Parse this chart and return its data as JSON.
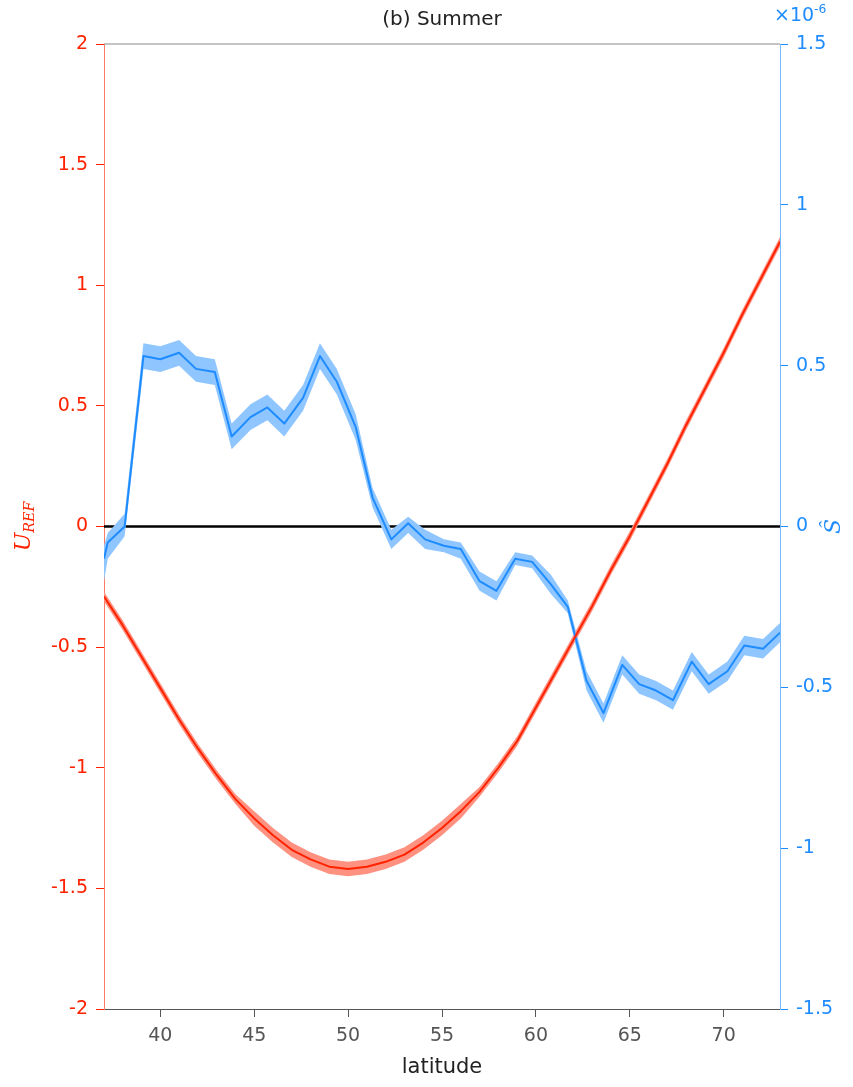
{
  "chart_data": {
    "type": "line",
    "title": "(b) Summer",
    "xlabel": "latitude",
    "ylabel": "U$_{REF}$",
    "y2label": "Ŝ",
    "xlim": [
      37,
      73
    ],
    "xticks": [
      40,
      45,
      50,
      55,
      60,
      65,
      70
    ],
    "ylim": [
      -2,
      2
    ],
    "yticks": [
      -2,
      -1.5,
      -1,
      -0.5,
      0,
      0.5,
      1,
      1.5,
      2
    ],
    "y2lim": [
      -1.5,
      1.5
    ],
    "y2ticks": [
      -1.5,
      -1,
      -0.5,
      0,
      0.5,
      1,
      1.5
    ],
    "annotations": [
      "×10$^{-6}$"
    ],
    "ref_lines": [
      {
        "axis": "y",
        "value": 0,
        "color": "#000000"
      }
    ],
    "grid": false,
    "legend": false,
    "marker": "none",
    "line_style": "solid",
    "series": [
      {
        "color": "#ff2200",
        "x": [
          37,
          38,
          39,
          40,
          41,
          42,
          43,
          44,
          45,
          46,
          47,
          48,
          49,
          50,
          51,
          52,
          53,
          54,
          55,
          56,
          57,
          58,
          59,
          60,
          61,
          62,
          63,
          64,
          65,
          66,
          67,
          68,
          69,
          70,
          71,
          72,
          73
        ],
        "values": [
          -0.29,
          -0.41,
          -0.54,
          -0.67,
          -0.8,
          -0.92,
          -1.03,
          -1.13,
          -1.21,
          -1.28,
          -1.34,
          -1.38,
          -1.41,
          -1.42,
          -1.41,
          -1.39,
          -1.36,
          -1.31,
          -1.25,
          -1.18,
          -1.1,
          -1,
          -0.89,
          -0.75,
          -0.61,
          -0.47,
          -0.33,
          -0.18,
          -0.04,
          0.11,
          0.26,
          0.42,
          0.57,
          0.72,
          0.88,
          1.03,
          1.18
        ],
        "lower": [
          -0.31,
          -0.43,
          -0.56,
          -0.69,
          -0.82,
          -0.94,
          -1.05,
          -1.15,
          -1.24,
          -1.31,
          -1.37,
          -1.41,
          -1.44,
          -1.45,
          -1.44,
          -1.42,
          -1.39,
          -1.34,
          -1.28,
          -1.21,
          -1.12,
          -1.02,
          -0.91,
          -0.77,
          -0.63,
          -0.49,
          -0.35,
          -0.2,
          -0.06,
          0.09,
          0.24,
          0.4,
          0.55,
          0.7,
          0.86,
          1.01,
          1.16
        ],
        "upper": [
          -0.27,
          -0.39,
          -0.52,
          -0.65,
          -0.78,
          -0.9,
          -1.01,
          -1.11,
          -1.18,
          -1.25,
          -1.31,
          -1.35,
          -1.38,
          -1.39,
          -1.38,
          -1.36,
          -1.33,
          -1.28,
          -1.22,
          -1.15,
          -1.08,
          -0.98,
          -0.87,
          -0.73,
          -0.59,
          -0.45,
          -0.31,
          -0.16,
          -0.02,
          0.13,
          0.28,
          0.44,
          0.59,
          0.74,
          0.9,
          1.05,
          1.2
        ]
      },
      {
        "color": "#1e8cff",
        "axis": "y2",
        "x": [
          37,
          37.2,
          38.1,
          39.1,
          40,
          41,
          41.9,
          42.9,
          43.8,
          44.8,
          45.7,
          46.6,
          47.6,
          48.5,
          49.4,
          50.4,
          51.3,
          52.3,
          53.2,
          54.1,
          55.1,
          56,
          57,
          57.9,
          58.9,
          59.8,
          60.8,
          61.7,
          62.7,
          63.6,
          64.6,
          65.5,
          66.4,
          67.3,
          68.3,
          69.2,
          70.2,
          71.1,
          72.1,
          73
        ],
        "values": [
          -0.1,
          -0.05,
          0,
          0.53,
          0.52,
          0.54,
          0.49,
          0.48,
          0.28,
          0.34,
          0.37,
          0.32,
          0.4,
          0.53,
          0.45,
          0.31,
          0.09,
          -0.04,
          0.01,
          -0.04,
          -0.06,
          -0.07,
          -0.17,
          -0.2,
          -0.1,
          -0.11,
          -0.18,
          -0.25,
          -0.48,
          -0.58,
          -0.43,
          -0.49,
          -0.51,
          -0.54,
          -0.42,
          -0.49,
          -0.45,
          -0.37,
          -0.38,
          -0.33
        ],
        "lower": [
          -0.17,
          -0.1,
          -0.03,
          0.49,
          0.48,
          0.5,
          0.45,
          0.44,
          0.24,
          0.3,
          0.33,
          0.28,
          0.36,
          0.49,
          0.41,
          0.27,
          0.06,
          -0.07,
          -0.02,
          -0.07,
          -0.08,
          -0.1,
          -0.2,
          -0.23,
          -0.12,
          -0.13,
          -0.21,
          -0.27,
          -0.51,
          -0.61,
          -0.46,
          -0.52,
          -0.54,
          -0.57,
          -0.45,
          -0.52,
          -0.48,
          -0.4,
          -0.41,
          -0.36
        ],
        "upper": [
          -0.06,
          -0.02,
          0.04,
          0.57,
          0.56,
          0.58,
          0.53,
          0.52,
          0.32,
          0.38,
          0.41,
          0.36,
          0.44,
          0.57,
          0.49,
          0.35,
          0.12,
          -0.01,
          0.03,
          -0.01,
          -0.04,
          -0.05,
          -0.14,
          -0.17,
          -0.08,
          -0.09,
          -0.15,
          -0.23,
          -0.45,
          -0.55,
          -0.4,
          -0.46,
          -0.48,
          -0.51,
          -0.39,
          -0.46,
          -0.42,
          -0.34,
          -0.35,
          -0.3
        ]
      }
    ]
  }
}
